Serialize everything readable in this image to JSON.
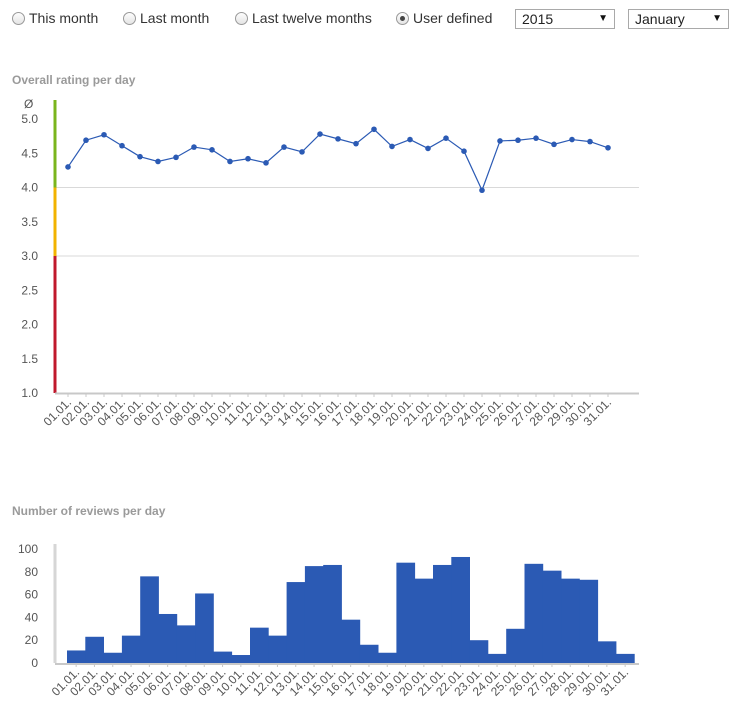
{
  "filters": {
    "options": [
      {
        "label": "This month",
        "checked": false
      },
      {
        "label": "Last month",
        "checked": false
      },
      {
        "label": "Last twelve months",
        "checked": false
      },
      {
        "label": "User defined",
        "checked": true
      }
    ],
    "year": "2015",
    "month": "January"
  },
  "colors": {
    "series": "#2b5ab4",
    "green": "#7ab51d",
    "yellow": "#f2b300",
    "red": "#c0182c",
    "grid": "#d9d9d9"
  },
  "chart_data": [
    {
      "type": "line",
      "title": "Overall rating per day",
      "ylabel": "Ø",
      "ylim": [
        1.0,
        5.0
      ],
      "yticks": [
        "1.0",
        "1.5",
        "2.0",
        "2.5",
        "3.0",
        "3.5",
        "4.0",
        "4.5",
        "5.0"
      ],
      "gridlines": [
        3.0,
        4.0
      ],
      "rating_bands": [
        {
          "from": 1.0,
          "to": 3.0,
          "color": "red"
        },
        {
          "from": 3.0,
          "to": 4.0,
          "color": "yellow"
        },
        {
          "from": 4.0,
          "to": 5.0,
          "color": "green"
        }
      ],
      "categories": [
        "01.01.",
        "02.01.",
        "03.01.",
        "04.01.",
        "05.01.",
        "06.01.",
        "07.01.",
        "08.01.",
        "09.01.",
        "10.01.",
        "11.01.",
        "12.01.",
        "13.01.",
        "14.01.",
        "15.01.",
        "16.01.",
        "17.01.",
        "18.01.",
        "19.01.",
        "20.01.",
        "21.01.",
        "22.01.",
        "23.01.",
        "24.01.",
        "25.01.",
        "26.01.",
        "27.01.",
        "28.01.",
        "29.01.",
        "30.01.",
        "31.01."
      ],
      "values": [
        4.3,
        4.69,
        4.77,
        4.61,
        4.45,
        4.38,
        4.44,
        4.59,
        4.55,
        4.38,
        4.42,
        4.36,
        4.59,
        4.52,
        4.78,
        4.71,
        4.64,
        4.85,
        4.6,
        4.7,
        4.57,
        4.72,
        4.53,
        3.96,
        4.68,
        4.69,
        4.72,
        4.63,
        4.7,
        4.67,
        4.58
      ]
    },
    {
      "type": "bar",
      "title": "Number of reviews per day",
      "ylim": [
        0,
        100
      ],
      "yticks": [
        "0",
        "20",
        "40",
        "60",
        "80",
        "100"
      ],
      "categories": [
        "01.01.",
        "02.01.",
        "03.01.",
        "04.01.",
        "05.01.",
        "06.01.",
        "07.01.",
        "08.01.",
        "09.01.",
        "10.01.",
        "11.01.",
        "12.01.",
        "13.01.",
        "14.01.",
        "15.01.",
        "16.01.",
        "17.01.",
        "18.01.",
        "19.01.",
        "20.01.",
        "21.01.",
        "22.01.",
        "23.01.",
        "24.01.",
        "25.01.",
        "26.01.",
        "27.01.",
        "28.01.",
        "29.01.",
        "30.01.",
        "31.01."
      ],
      "values": [
        11,
        23,
        9,
        24,
        76,
        43,
        33,
        61,
        10,
        7,
        31,
        24,
        71,
        85,
        86,
        38,
        16,
        9,
        88,
        74,
        86,
        93,
        20,
        8,
        30,
        87,
        81,
        74,
        73,
        19,
        8
      ]
    }
  ]
}
